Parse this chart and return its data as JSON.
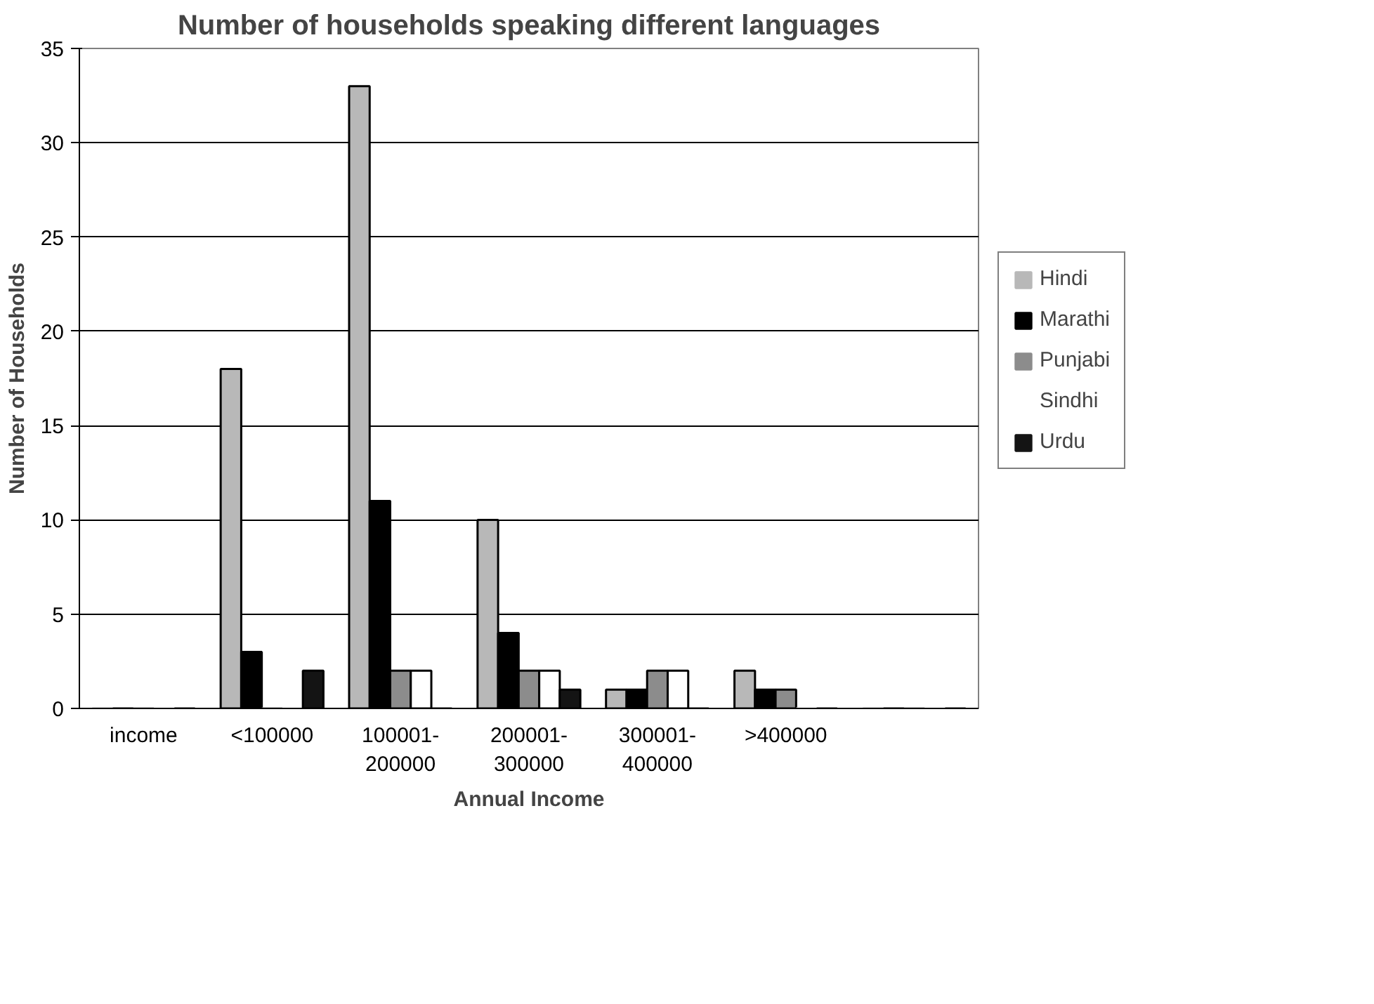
{
  "chart_data": {
    "type": "bar",
    "title": "Number of households speaking different languages",
    "xlabel": "Annual Income",
    "ylabel": "Number of Households",
    "categories": [
      "income",
      "<100000",
      "100001-\n200000",
      "200001-\n300000",
      "300001-\n400000",
      ">400000",
      null
    ],
    "series": [
      {
        "name": "Hindi",
        "color": "#b8b8b8",
        "values": [
          0,
          18,
          33,
          10,
          1,
          2,
          0
        ]
      },
      {
        "name": "Marathi",
        "color": "#000000",
        "values": [
          0,
          3,
          11,
          4,
          1,
          1,
          0
        ]
      },
      {
        "name": "Punjabi",
        "color": "#8c8c8c",
        "values": [
          0,
          0,
          2,
          2,
          2,
          1,
          0
        ]
      },
      {
        "name": "Sindhi",
        "color": "#ffffff",
        "values": [
          0,
          0,
          2,
          2,
          2,
          0,
          0
        ]
      },
      {
        "name": "Urdu",
        "color": "#141414",
        "values": [
          0,
          2,
          0,
          1,
          0,
          0,
          0
        ]
      }
    ],
    "ylim": [
      0,
      35
    ],
    "yticks": [
      0,
      5,
      10,
      15,
      20,
      25,
      30,
      35
    ],
    "grid": "y",
    "legend": "right"
  }
}
